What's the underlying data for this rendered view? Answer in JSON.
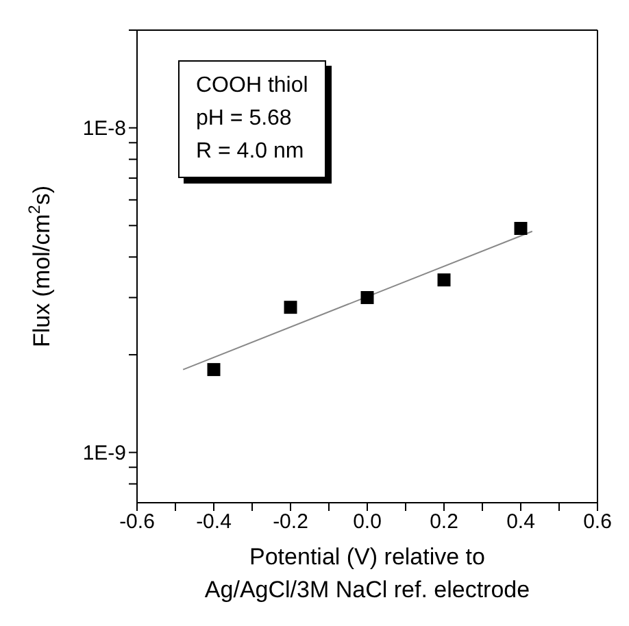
{
  "chart_data": {
    "type": "scatter",
    "xlabel": "Potential (V) relative to\nAg/AgCl/3M NaCl ref. electrode",
    "ylabel": "Flux (mol/cm$^{2}$s)",
    "annotations": [
      "COOH thiol",
      "pH = 5.68",
      "R = 4.0 nm"
    ],
    "series": [
      {
        "marker": "square",
        "color": "#000000",
        "x": [
          -0.4,
          -0.2,
          0,
          0.2,
          0.4
        ],
        "values": [
          1.8e-09,
          2.8e-09,
          3e-09,
          3.4e-09,
          4.9e-09
        ]
      },
      {
        "type": "line",
        "color": "#888888",
        "x": [
          -0.48,
          0.43
        ],
        "values": [
          1.8e-09,
          4.8e-09
        ]
      }
    ],
    "log": "y",
    "xlim": [
      -0.6,
      0.6
    ],
    "ylim": [
      7e-10,
      2e-08
    ],
    "xticks": [
      -0.6,
      {
        "value": -0.5,
        "label": null
      },
      -0.4,
      {
        "value": -0.3,
        "label": null
      },
      -0.2,
      {
        "value": -0.1,
        "label": null
      },
      {
        "value": 0,
        "label": "0.0"
      },
      {
        "value": 0.1,
        "label": null
      },
      0.2,
      {
        "value": 0.3,
        "label": null
      },
      0.4,
      {
        "value": 0.5,
        "label": null
      },
      0.6
    ],
    "yticks": [
      {
        "value": 8e-10,
        "label": null
      },
      {
        "value": 9e-10,
        "label": null
      },
      {
        "value": 1e-09,
        "label": "1E-9"
      },
      {
        "value": 2e-09,
        "label": null
      },
      {
        "value": 3e-09,
        "label": null
      },
      {
        "value": 4e-09,
        "label": null
      },
      {
        "value": 5e-09,
        "label": null
      },
      {
        "value": 6e-09,
        "label": null
      },
      {
        "value": 7e-09,
        "label": null
      },
      {
        "value": 8e-09,
        "label": null
      },
      {
        "value": 9e-09,
        "label": null
      },
      {
        "value": 1e-08,
        "label": "1E-8"
      },
      {
        "value": 2e-08,
        "label": null
      }
    ],
    "grid": false,
    "legend": false,
    "line_style": "solid"
  }
}
